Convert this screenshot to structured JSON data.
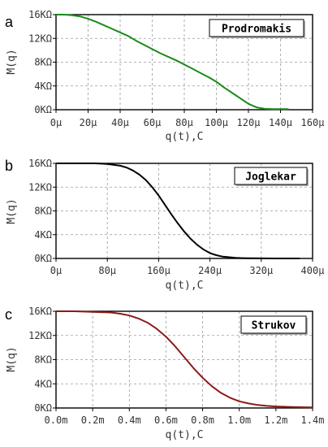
{
  "chart_data": [
    {
      "type": "line",
      "panel_label": "a",
      "title_box": "Prodromakis",
      "xlabel": "q(t),C",
      "ylabel": "M(q)",
      "x_ticks": [
        "0μ",
        "20μ",
        "40μ",
        "60μ",
        "80μ",
        "100μ",
        "120μ",
        "140μ",
        "160μ"
      ],
      "y_ticks": [
        "0KΩ",
        "4KΩ",
        "8KΩ",
        "12KΩ",
        "16KΩ"
      ],
      "xlim": [
        0,
        160
      ],
      "ylim": [
        0,
        16
      ],
      "grid": true,
      "series": [
        {
          "color": "#1a8a1a",
          "x": [
            0,
            5,
            10,
            15,
            20,
            25,
            30,
            35,
            40,
            45,
            50,
            55,
            60,
            65,
            70,
            75,
            80,
            85,
            90,
            95,
            100,
            105,
            110,
            115,
            120,
            125,
            130,
            135,
            140,
            145
          ],
          "y": [
            16,
            16,
            15.9,
            15.7,
            15.3,
            14.8,
            14.2,
            13.6,
            13.0,
            12.4,
            11.6,
            10.9,
            10.2,
            9.5,
            8.9,
            8.3,
            7.6,
            6.9,
            6.2,
            5.5,
            4.7,
            3.7,
            2.8,
            1.9,
            1.0,
            0.4,
            0.15,
            0.1,
            0.1,
            0.1
          ]
        }
      ]
    },
    {
      "type": "line",
      "panel_label": "b",
      "title_box": "Joglekar",
      "xlabel": "q(t),C",
      "ylabel": "M(q)",
      "x_ticks": [
        "0μ",
        "80μ",
        "160μ",
        "240μ",
        "320μ",
        "400μ"
      ],
      "y_ticks": [
        "0KΩ",
        "4KΩ",
        "8KΩ",
        "12KΩ",
        "16KΩ"
      ],
      "xlim": [
        0,
        400
      ],
      "ylim": [
        0,
        16
      ],
      "grid": true,
      "series": [
        {
          "color": "#000000",
          "x": [
            0,
            20,
            40,
            60,
            80,
            100,
            110,
            120,
            130,
            140,
            150,
            160,
            170,
            180,
            190,
            200,
            210,
            220,
            230,
            240,
            250,
            260,
            270,
            280,
            290,
            300,
            320,
            340,
            360,
            380
          ],
          "y": [
            16,
            16,
            16,
            16,
            15.9,
            15.6,
            15.3,
            14.8,
            14.1,
            13.2,
            12.0,
            10.6,
            9.0,
            7.4,
            5.9,
            4.5,
            3.3,
            2.3,
            1.5,
            0.9,
            0.55,
            0.3,
            0.2,
            0.1,
            0.05,
            0.03,
            0.02,
            0,
            0,
            0
          ]
        }
      ]
    },
    {
      "type": "line",
      "panel_label": "c",
      "title_box": "Strukov",
      "xlabel": "q(t),C",
      "ylabel": "M(q)",
      "x_ticks": [
        "0.0m",
        "0.2m",
        "0.4m",
        "0.6m",
        "0.8m",
        "1.0m",
        "1.2m",
        "1.4m"
      ],
      "y_ticks": [
        "0KΩ",
        "4KΩ",
        "8KΩ",
        "12KΩ",
        "16KΩ"
      ],
      "xlim": [
        0,
        1.4
      ],
      "ylim": [
        0,
        16
      ],
      "grid": true,
      "series": [
        {
          "color": "#8b1a1a",
          "x": [
            0,
            0.1,
            0.2,
            0.3,
            0.35,
            0.4,
            0.45,
            0.5,
            0.55,
            0.6,
            0.65,
            0.7,
            0.75,
            0.8,
            0.85,
            0.9,
            0.95,
            1.0,
            1.05,
            1.1,
            1.15,
            1.2,
            1.3,
            1.4
          ],
          "y": [
            16,
            16,
            15.9,
            15.8,
            15.6,
            15.3,
            14.8,
            14.1,
            13.1,
            11.8,
            10.2,
            8.4,
            6.6,
            5.0,
            3.6,
            2.5,
            1.7,
            1.1,
            0.75,
            0.5,
            0.35,
            0.25,
            0.15,
            0.1
          ]
        }
      ]
    }
  ]
}
